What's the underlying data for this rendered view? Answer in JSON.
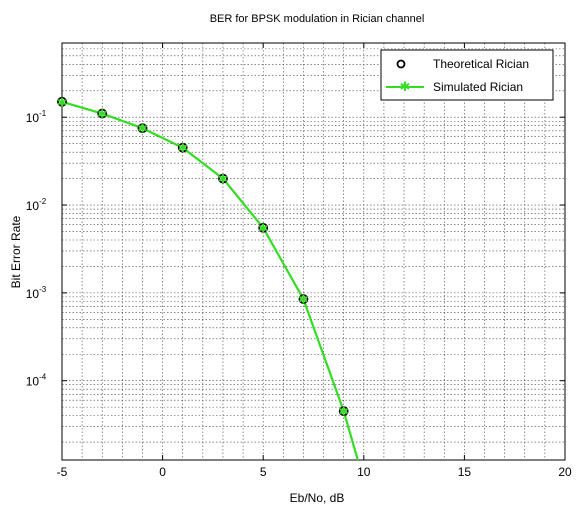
{
  "chart_data": {
    "type": "line",
    "title": "BER for BPSK modulation in  Rician  channel",
    "xlabel": "Eb/No, dB",
    "ylabel": "Bit Error Rate",
    "xlim": [
      -5,
      20
    ],
    "ylim": [
      1.25e-05,
      0.7
    ],
    "yscale": "log",
    "grid": true,
    "legend_position": "top-right",
    "x_ticks": [
      -5,
      0,
      5,
      10,
      15,
      20
    ],
    "x_tick_labels": [
      "-5",
      "0",
      "5",
      "10",
      "15",
      "20"
    ],
    "y_ticks": [
      0.1,
      0.01,
      0.001,
      0.0001
    ],
    "y_tick_labels": [
      {
        "base": "10",
        "exp": "-1"
      },
      {
        "base": "10",
        "exp": "-2"
      },
      {
        "base": "10",
        "exp": "-3"
      },
      {
        "base": "10",
        "exp": "-4"
      }
    ],
    "series": [
      {
        "name": "Theoretical Rician",
        "color": "#000000",
        "marker": "circle",
        "x": [
          -5,
          -3,
          -1,
          1,
          3,
          5,
          7,
          9
        ],
        "y": [
          0.15,
          0.11,
          0.075,
          0.045,
          0.02,
          0.0055,
          0.00085,
          4.5e-05
        ]
      },
      {
        "name": "Simulated Rician",
        "color": "#33dd22",
        "marker": "star",
        "x": [
          -5,
          -3,
          -1,
          1,
          3,
          5,
          7,
          9,
          9.7
        ],
        "y": [
          0.15,
          0.11,
          0.075,
          0.045,
          0.02,
          0.0055,
          0.00085,
          4.5e-05,
          1.25e-05
        ]
      }
    ]
  }
}
